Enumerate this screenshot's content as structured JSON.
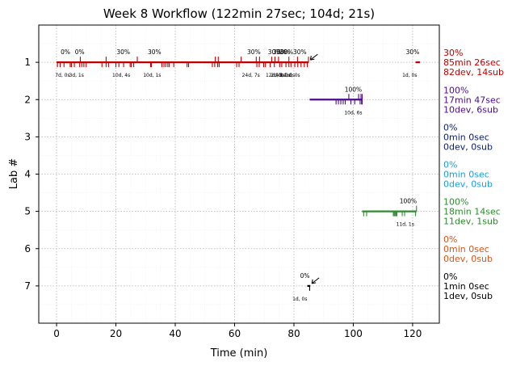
{
  "chart_data": {
    "type": "timeline",
    "title": "Week 8 Workflow (122min 27sec; 104d; 21s)",
    "xlabel": "Time (min)",
    "ylabel": "Lab #",
    "xlim": [
      -6,
      129
    ],
    "ylim": [
      0,
      8
    ],
    "xticks": [
      0,
      20,
      40,
      60,
      80,
      100,
      120
    ],
    "yticks": [
      1,
      2,
      3,
      4,
      5,
      6,
      7
    ],
    "grid": true,
    "labs": [
      {
        "lab": 1,
        "color": "#c00000",
        "summary": [
          "30%",
          "85min 26sec",
          "82dev, 14sub"
        ],
        "spans": [
          [
            0,
            85
          ],
          [
            121,
            122.5
          ]
        ],
        "dev_ticks": [
          0.3,
          1.2,
          2.5,
          4.6,
          5,
          6,
          7.8,
          8.5,
          9.2,
          10,
          15.3,
          16.7,
          17.5,
          20,
          21,
          22.6,
          24.8,
          25.2,
          26,
          31.7,
          32,
          35.5,
          36.2,
          36.8,
          37.5,
          38,
          39.5,
          44,
          44.5,
          52.5,
          53.3,
          54.3,
          54.8,
          60.7,
          61.5,
          67.5,
          68.3,
          69.8,
          70.4,
          72,
          73.4,
          75.2,
          75.9,
          77.3,
          78.3,
          79,
          80.3,
          81.3,
          82.4,
          83.5,
          84.5
        ],
        "sub_ticks": [
          8,
          16.7,
          27.2,
          53.5,
          54.5,
          62.2,
          67.3,
          68.4,
          72.5,
          73.6,
          74.8,
          78.3,
          81.2,
          84.9
        ],
        "pct_labels": [
          {
            "x": 3,
            "text": "0%"
          },
          {
            "x": 7.8,
            "text": "0%"
          },
          {
            "x": 22.5,
            "text": "30%"
          },
          {
            "x": 33,
            "text": "30%"
          },
          {
            "x": 66.5,
            "text": "30%"
          },
          {
            "x": 73.5,
            "text": "30%"
          },
          {
            "x": 75.2,
            "text": "30%"
          },
          {
            "x": 76.4,
            "text": "30%"
          },
          {
            "x": 77.5,
            "text": "30%"
          },
          {
            "x": 82,
            "text": "30%"
          },
          {
            "x": 120,
            "text": "30%"
          }
        ],
        "count_labels": [
          {
            "x": 2,
            "text": "7d, 0s"
          },
          {
            "x": 6.7,
            "text": "3d, 1s"
          },
          {
            "x": 21.8,
            "text": "10d, 4s"
          },
          {
            "x": 32.2,
            "text": "10d, 1s"
          },
          {
            "x": 65.5,
            "text": "24d, 7s"
          },
          {
            "x": 73.5,
            "text": "12d, 0s"
          },
          {
            "x": 74.7,
            "text": "2d, 1s"
          },
          {
            "x": 76.3,
            "text": "4d, 0s"
          },
          {
            "x": 77.8,
            "text": "2d, 0s"
          },
          {
            "x": 79.6,
            "text": "1d, 0s"
          },
          {
            "x": 119,
            "text": "1d, 0s"
          }
        ],
        "arrow": true
      },
      {
        "lab": 2,
        "color": "#4b0c8c",
        "summary": [
          "100%",
          "17min 47sec",
          "10dev, 6sub"
        ],
        "spans": [
          [
            85.3,
            103
          ]
        ],
        "dev_ticks": [
          94.2,
          95,
          95.8,
          96.6,
          97.3,
          99.2,
          100.5,
          102.3,
          102.8,
          103
        ],
        "sub_ticks": [
          98.5,
          101.8,
          102.6,
          103
        ],
        "pct_labels": [
          {
            "x": 100,
            "text": "100%"
          }
        ],
        "count_labels": [
          {
            "x": 100,
            "text": "10d, 6s"
          }
        ],
        "arrow": false
      },
      {
        "lab": 3,
        "color": "#0c1c6e",
        "summary": [
          "0%",
          "0min 0sec",
          "0dev, 0sub"
        ],
        "spans": [],
        "dev_ticks": [],
        "sub_ticks": [],
        "pct_labels": [],
        "count_labels": [],
        "arrow": false
      },
      {
        "lab": 4,
        "color": "#1a9ee0",
        "summary": [
          "0%",
          "0min 0sec",
          "0dev, 0sub"
        ],
        "spans": [],
        "dev_ticks": [],
        "sub_ticks": [],
        "pct_labels": [],
        "count_labels": [],
        "arrow": false
      },
      {
        "lab": 5,
        "color": "#2e8b2e",
        "summary": [
          "100%",
          "18min 14sec",
          "11dev, 1sub"
        ],
        "spans": [
          [
            103,
            121.3
          ]
        ],
        "dev_ticks": [
          103.5,
          104.5,
          113.5,
          113.8,
          114.1,
          114.4,
          114.7,
          116.5,
          117.3,
          121
        ],
        "sub_ticks": [
          121.3
        ],
        "pct_labels": [
          {
            "x": 118.5,
            "text": "100%"
          }
        ],
        "count_labels": [
          {
            "x": 117.5,
            "text": "11d, 1s"
          }
        ],
        "arrow": false
      },
      {
        "lab": 6,
        "color": "#d9541a",
        "summary": [
          "0%",
          "0min 0sec",
          "0dev, 0sub"
        ],
        "spans": [],
        "dev_ticks": [],
        "sub_ticks": [],
        "pct_labels": [],
        "count_labels": [],
        "arrow": false
      },
      {
        "lab": 7,
        "color": "#000000",
        "summary": [
          "0%",
          "1min 0sec",
          "1dev, 0sub"
        ],
        "spans": [
          [
            84.5,
            85.5
          ]
        ],
        "dev_ticks": [
          85.3
        ],
        "sub_ticks": [],
        "pct_labels": [
          {
            "x": 83.7,
            "text": "0%"
          }
        ],
        "count_labels": [
          {
            "x": 82,
            "text": "1d, 0s"
          }
        ],
        "arrow": true
      }
    ]
  }
}
